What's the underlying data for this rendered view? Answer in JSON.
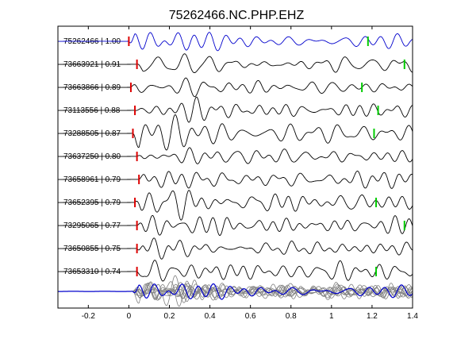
{
  "chart_data": {
    "type": "line",
    "title": "75262466.NC.PHP.EHZ",
    "xlabel": "",
    "ylabel": "",
    "xlim": [
      -0.35,
      1.4
    ],
    "xticks": [
      -0.2,
      0,
      0.2,
      0.4,
      0.6,
      0.8,
      1,
      1.2,
      1.4
    ],
    "xtick_labels": [
      "-0.2",
      "0",
      "0.2",
      "0.4",
      "0.6",
      "0.8",
      "1",
      "1.2",
      "1.4"
    ],
    "grid": false,
    "legend": "none",
    "series": [
      {
        "name": "75262466 | 1.00",
        "color": "#0000cc",
        "onset": 0.0,
        "green_pick": 1.18
      },
      {
        "name": "73663921 | 0.91",
        "color": "#000000",
        "onset": 0.04,
        "green_pick": 1.36
      },
      {
        "name": "73663866 | 0.89",
        "color": "#000000",
        "onset": 0.01,
        "green_pick": 1.15
      },
      {
        "name": "73113556 | 0.88",
        "color": "#000000",
        "onset": 0.03,
        "green_pick": 1.23
      },
      {
        "name": "73288505 | 0.87",
        "color": "#000000",
        "onset": 0.02,
        "green_pick": 1.21
      },
      {
        "name": "73637250 | 0.80",
        "color": "#000000",
        "onset": 0.04,
        "green_pick": null
      },
      {
        "name": "73658961 | 0.79",
        "color": "#000000",
        "onset": 0.05,
        "green_pick": null
      },
      {
        "name": "73652395 | 0.79",
        "color": "#000000",
        "onset": 0.03,
        "green_pick": 1.22
      },
      {
        "name": "73295065 | 0.77",
        "color": "#000000",
        "onset": 0.04,
        "green_pick": 1.36
      },
      {
        "name": "73650855 | 0.75",
        "color": "#000000",
        "onset": 0.04,
        "green_pick": null
      },
      {
        "name": "73653310 | 0.74",
        "color": "#000000",
        "onset": 0.04,
        "green_pick": 1.22
      }
    ],
    "stack_trace": {
      "color_overlay": "#808080",
      "color_reference": "#0000cc"
    },
    "pick_colors": {
      "red": "#dd0000",
      "green": "#00cc00"
    }
  }
}
